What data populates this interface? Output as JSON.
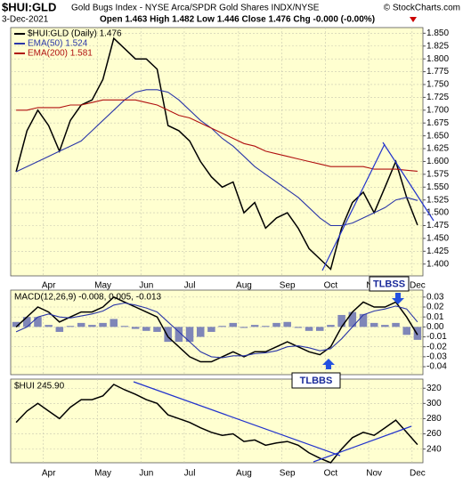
{
  "header": {
    "symbol": "$HUI:GLD",
    "description": "Gold Bugs Index - NYSE Arca/SPDR Gold Shares INDX/NYSE",
    "source": "© StockCharts.com",
    "date": "3-Dec-2021",
    "quote": "Open 1.463  High 1.482  Low 1.446  Close 1.476  Chg -0.000 (-0.00%)"
  },
  "annotations": [
    "TLBSS",
    "TLBBS"
  ],
  "chart_data": [
    {
      "type": "line",
      "categories": [
        null,
        null,
        null,
        "Apr",
        null,
        null,
        null,
        null,
        "May",
        null,
        null,
        null,
        "Jun",
        null,
        null,
        null,
        "Jul",
        null,
        null,
        null,
        null,
        "Aug",
        null,
        null,
        null,
        "Sep",
        null,
        null,
        null,
        "Oct",
        null,
        null,
        null,
        "Nov",
        null,
        null,
        null,
        "Dec"
      ],
      "series": [
        {
          "name": "$HUI:GLD (Daily) 1.476",
          "color": "#000000",
          "values": [
            1.58,
            1.66,
            1.7,
            1.67,
            1.62,
            1.68,
            1.71,
            1.72,
            1.76,
            1.84,
            1.82,
            1.8,
            1.8,
            1.78,
            1.67,
            1.66,
            1.64,
            1.6,
            1.57,
            1.55,
            1.56,
            1.5,
            1.52,
            1.47,
            1.49,
            1.5,
            1.47,
            1.43,
            1.41,
            1.39,
            1.47,
            1.52,
            1.54,
            1.5,
            1.55,
            1.6,
            1.53,
            1.476
          ]
        },
        {
          "name": "EMA(50) 1.524",
          "color": "#2a36a8",
          "values": [
            1.58,
            1.59,
            1.6,
            1.61,
            1.62,
            1.63,
            1.64,
            1.66,
            1.68,
            1.7,
            1.72,
            1.735,
            1.74,
            1.74,
            1.735,
            1.72,
            1.7,
            1.68,
            1.665,
            1.645,
            1.63,
            1.61,
            1.59,
            1.575,
            1.56,
            1.545,
            1.53,
            1.51,
            1.49,
            1.475,
            1.475,
            1.48,
            1.49,
            1.5,
            1.51,
            1.525,
            1.53,
            1.524
          ]
        },
        {
          "name": "EMA(200) 1.581",
          "color": "#b01010",
          "values": [
            1.7,
            1.7,
            1.705,
            1.705,
            1.705,
            1.71,
            1.71,
            1.715,
            1.72,
            1.72,
            1.72,
            1.72,
            1.715,
            1.71,
            1.7,
            1.69,
            1.685,
            1.675,
            1.665,
            1.655,
            1.645,
            1.635,
            1.63,
            1.62,
            1.615,
            1.61,
            1.605,
            1.6,
            1.595,
            1.59,
            1.59,
            1.59,
            1.59,
            1.585,
            1.585,
            1.585,
            1.583,
            1.581
          ]
        }
      ],
      "ylim": [
        1.377,
        1.861
      ],
      "yticks": [
        {
          "value": 1.4,
          "label": "1.400"
        },
        {
          "value": 1.425,
          "label": "1.425"
        },
        {
          "value": 1.45,
          "label": "1.450"
        },
        {
          "value": 1.475,
          "label": "1.475"
        },
        {
          "value": 1.5,
          "label": "1.500"
        },
        {
          "value": 1.525,
          "label": "1.525"
        },
        {
          "value": 1.55,
          "label": "1.550"
        },
        {
          "value": 1.575,
          "label": "1.575"
        },
        {
          "value": 1.6,
          "label": "1.600"
        },
        {
          "value": 1.625,
          "label": "1.625"
        },
        {
          "value": 1.65,
          "label": "1.650"
        },
        {
          "value": 1.675,
          "label": "1.675"
        },
        {
          "value": 1.7,
          "label": "1.700"
        },
        {
          "value": 1.725,
          "label": "1.725"
        },
        {
          "value": 1.75,
          "label": "1.750"
        },
        {
          "value": 1.775,
          "label": "1.775"
        },
        {
          "value": 1.8,
          "label": "1.800"
        },
        {
          "value": 1.825,
          "label": "1.825"
        },
        {
          "value": 1.85,
          "label": "1.850"
        }
      ],
      "grid": true
    },
    {
      "type": "line",
      "title": "MACD(12,26,9) -0.008, 0.005, -0.013",
      "series": [
        {
          "name": "MACD",
          "color": "#000000",
          "values": [
            0,
            0.01,
            0.02,
            0.015,
            0.005,
            0.01,
            0.015,
            0.015,
            0.02,
            0.03,
            0.025,
            0.02,
            0.015,
            0.01,
            -0.01,
            -0.02,
            -0.03,
            -0.035,
            -0.035,
            -0.03,
            -0.025,
            -0.03,
            -0.025,
            -0.025,
            -0.02,
            -0.015,
            -0.02,
            -0.025,
            -0.028,
            -0.02,
            0,
            0.015,
            0.025,
            0.02,
            0.02,
            0.025,
            0.01,
            -0.008
          ]
        },
        {
          "name": "Signal",
          "color": "#2a36a8",
          "values": [
            -0.005,
            0,
            0.01,
            0.013,
            0.01,
            0.009,
            0.011,
            0.013,
            0.016,
            0.022,
            0.024,
            0.022,
            0.019,
            0.015,
            0.005,
            -0.005,
            -0.015,
            -0.025,
            -0.03,
            -0.031,
            -0.029,
            -0.029,
            -0.027,
            -0.026,
            -0.024,
            -0.02,
            -0.019,
            -0.021,
            -0.024,
            -0.022,
            -0.012,
            0,
            0.012,
            0.016,
            0.018,
            0.021,
            0.018,
            0.005
          ]
        },
        {
          "name": "Histogram",
          "kind": "bar",
          "color": "#7f86b8",
          "values": [
            0.005,
            0.01,
            0.01,
            0.002,
            -0.005,
            0.001,
            0.004,
            0.002,
            0.004,
            0.008,
            0.001,
            -0.002,
            -0.004,
            -0.005,
            -0.015,
            -0.015,
            -0.015,
            -0.01,
            -0.005,
            0.001,
            0.004,
            -0.001,
            0.002,
            0.001,
            0.004,
            0.005,
            -0.001,
            -0.004,
            -0.004,
            0.002,
            0.012,
            0.015,
            0.013,
            0.004,
            0.002,
            0.004,
            -0.008,
            -0.013
          ]
        }
      ],
      "ylim": [
        -0.048,
        0.037
      ],
      "yticks": [
        -0.04,
        -0.03,
        -0.02,
        -0.01,
        {
          "value": 0,
          "label": "0.00"
        },
        0.01,
        0.02,
        0.03
      ],
      "grid": true
    },
    {
      "type": "line",
      "title": "$HUI 245.90",
      "categories": [
        null,
        null,
        null,
        "Apr",
        null,
        null,
        null,
        null,
        "May",
        null,
        null,
        null,
        "Jun",
        null,
        null,
        null,
        "Jul",
        null,
        null,
        null,
        null,
        "Aug",
        null,
        null,
        null,
        "Sep",
        null,
        null,
        null,
        "Oct",
        null,
        null,
        null,
        "Nov",
        null,
        null,
        null,
        "Dec"
      ],
      "series": [
        {
          "name": "$HUI",
          "color": "#000000",
          "values": [
            275,
            290,
            300,
            290,
            280,
            295,
            305,
            305,
            310,
            325,
            318,
            312,
            305,
            300,
            285,
            280,
            275,
            268,
            262,
            258,
            260,
            250,
            252,
            245,
            248,
            250,
            245,
            235,
            228,
            222,
            240,
            255,
            262,
            258,
            268,
            278,
            262,
            245.9
          ]
        }
      ],
      "ylim": [
        222,
        332
      ],
      "yticks": [
        240,
        260,
        280,
        300,
        320
      ],
      "grid": true
    }
  ]
}
